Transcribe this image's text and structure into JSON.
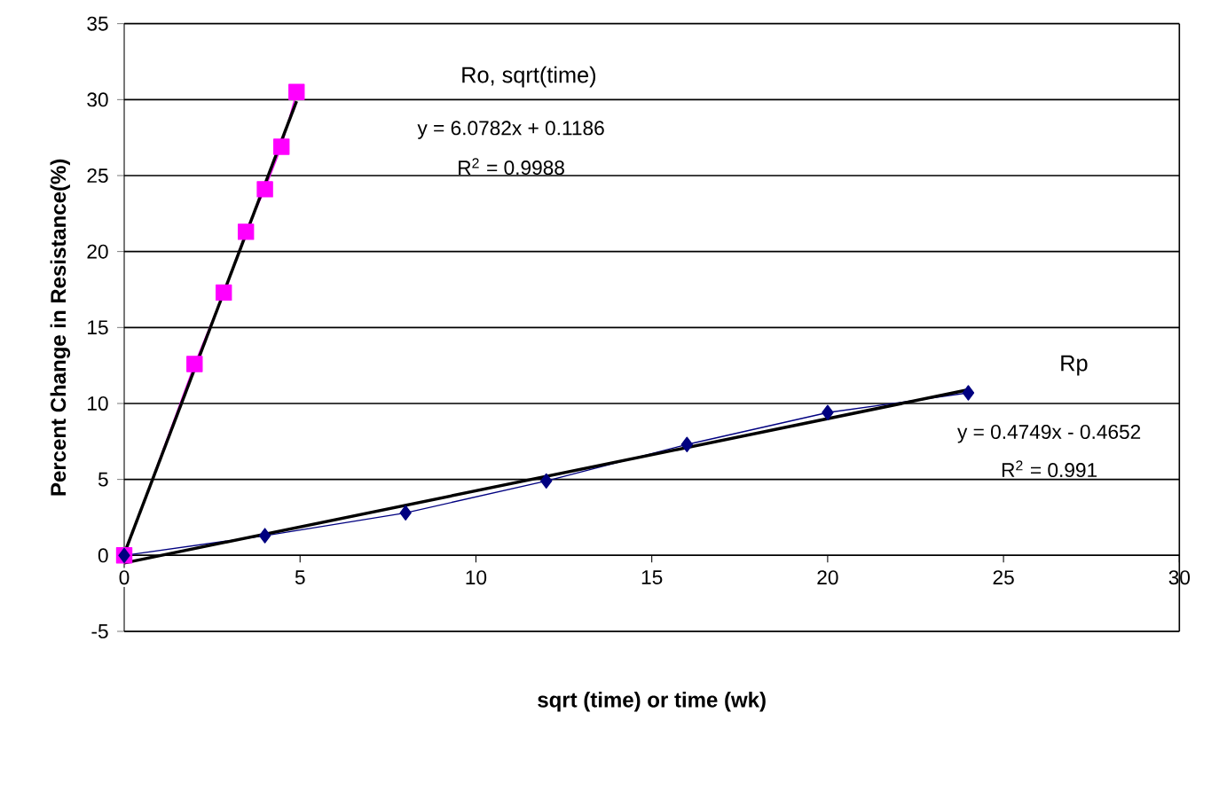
{
  "chart_data": {
    "type": "line",
    "xlabel": "sqrt (time) or time (wk)",
    "ylabel": "Percent Change in Resistance(%)",
    "xlim": [
      0,
      30
    ],
    "xticks": [
      0,
      5,
      10,
      15,
      20,
      25,
      30
    ],
    "ylim": [
      -5,
      35
    ],
    "yticks": [
      -5,
      0,
      5,
      10,
      15,
      20,
      25,
      30,
      35
    ],
    "grid": "y",
    "series": [
      {
        "name": "Ro, sqrt(time)",
        "color": "#ff00ff",
        "marker": "square",
        "x": [
          0,
          2,
          2.83,
          3.46,
          4,
          4.47,
          4.9
        ],
        "values": [
          0,
          12.6,
          17.3,
          21.3,
          24.1,
          26.9,
          30.5
        ]
      },
      {
        "name": "Rp",
        "color": "#000080",
        "marker": "diamond",
        "x": [
          0,
          4,
          8,
          12,
          16,
          20,
          24
        ],
        "values": [
          0,
          1.3,
          2.8,
          4.9,
          7.3,
          9.4,
          10.7
        ]
      },
      {
        "color": "#000000",
        "marker": "none",
        "x": [
          0,
          4.9
        ],
        "values": [
          0.1,
          29.9
        ]
      },
      {
        "color": "#000000",
        "marker": "none",
        "x": [
          0,
          24
        ],
        "values": [
          -0.5,
          10.9
        ]
      }
    ],
    "annotations": [
      "y = 6.0782x + 0.1186",
      "R$^{2}$ = 0.9988",
      "y = 0.4749x - 0.4652",
      "R$^{2}$ = 0.991"
    ]
  }
}
